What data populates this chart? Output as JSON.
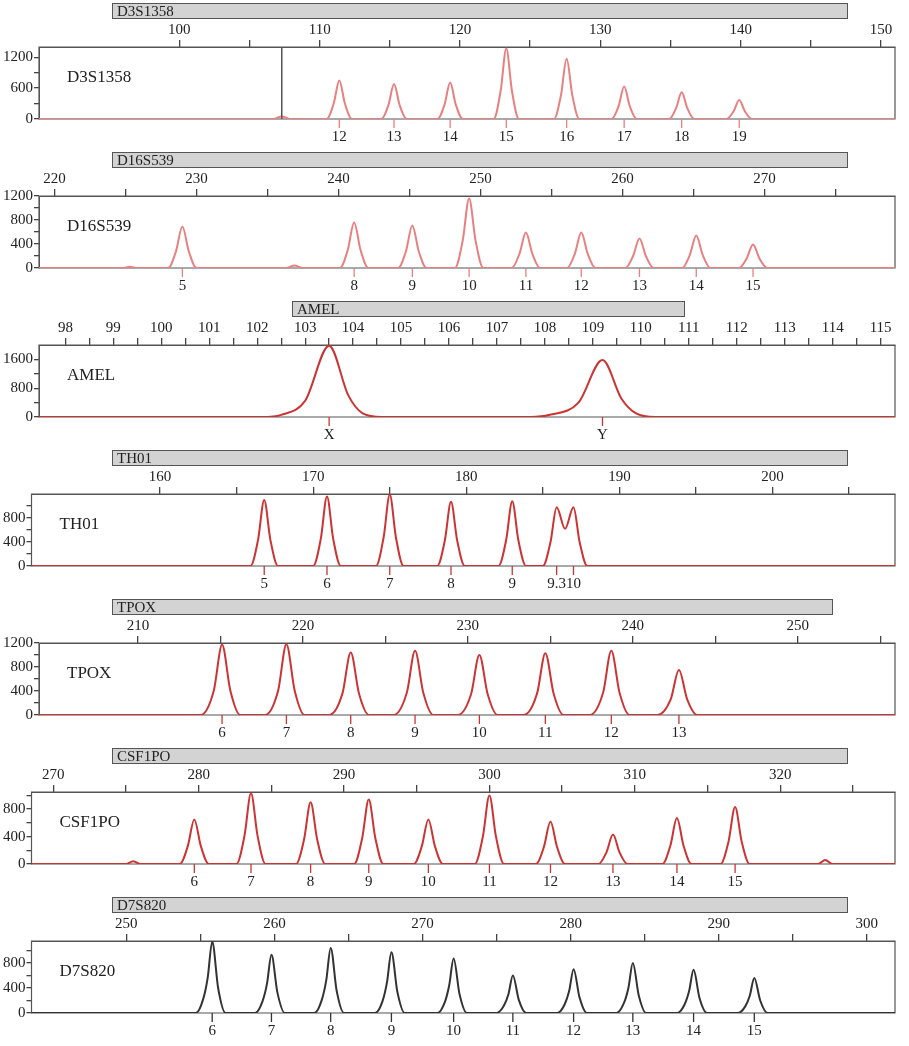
{
  "chart_data": [
    {
      "type": "line",
      "title": "D3S1358",
      "subtitle": "D3S1358",
      "xlim": [
        90,
        151
      ],
      "ylim": [
        0,
        1400
      ],
      "xticks": [
        100,
        {
          "value": 105,
          "label": null
        },
        110,
        {
          "value": 115,
          "label": null
        },
        120,
        {
          "value": 125,
          "label": null
        },
        130,
        {
          "value": 135,
          "label": null
        },
        140,
        {
          "value": 145,
          "label": null
        },
        150
      ],
      "yticks": [
        0,
        {
          "value": 300,
          "label": null
        },
        600,
        {
          "value": 900,
          "label": null
        },
        1200
      ],
      "ref_lines": [
        {
          "axis": "x",
          "value": 107.3,
          "color": "#555555"
        }
      ],
      "series": [
        {
          "color": "#e88080",
          "x": [
            90,
            106.7,
            107.3,
            107.9,
            110.5,
            111.0,
            111.4,
            111.8,
            112.3,
            114.4,
            114.9,
            115.3,
            115.7,
            116.2,
            118.4,
            118.9,
            119.3,
            119.7,
            120.2,
            122.4,
            122.9,
            123.3,
            123.7,
            124.2,
            126.7,
            127.2,
            127.6,
            128.0,
            128.5,
            130.8,
            131.3,
            131.7,
            132.1,
            132.6,
            134.9,
            135.4,
            135.8,
            136.2,
            136.7,
            139.0,
            139.5,
            139.9,
            140.3,
            140.8,
            151
          ],
          "values": [
            0,
            0,
            50,
            0,
            0,
            300,
            750,
            300,
            0,
            0,
            270,
            680,
            270,
            0,
            0,
            280,
            710,
            280,
            0,
            0,
            550,
            1370,
            550,
            0,
            0,
            470,
            1170,
            470,
            0,
            0,
            250,
            630,
            250,
            0,
            0,
            210,
            520,
            210,
            0,
            0,
            150,
            370,
            150,
            0,
            0
          ]
        }
      ],
      "annotations": [
        "12",
        "13",
        "14",
        "15",
        "16",
        "17",
        "18",
        "19"
      ]
    },
    {
      "type": "line",
      "title": "D16S539",
      "subtitle": "D16S539",
      "xlim": [
        218.9,
        279.2
      ],
      "ylim": [
        0,
        1200
      ],
      "xticks": [
        220,
        {
          "value": 225,
          "label": null
        },
        230,
        {
          "value": 235,
          "label": null
        },
        240,
        {
          "value": 245,
          "label": null
        },
        250,
        {
          "value": 255,
          "label": null
        },
        260,
        {
          "value": 265,
          "label": null
        },
        270,
        {
          "value": 275,
          "label": null
        }
      ],
      "yticks": [
        0,
        {
          "value": 200,
          "label": null
        },
        400,
        {
          "value": 600,
          "label": null
        },
        800,
        {
          "value": 1000,
          "label": null
        },
        1200
      ],
      "series": [
        {
          "color": "#e88080",
          "x": [
            218.9,
            224.8,
            225.3,
            225.8,
            228.0,
            228.55,
            229.0,
            229.45,
            230.0,
            236.3,
            236.9,
            237.5,
            240.1,
            240.65,
            241.1,
            241.55,
            242.1,
            244.2,
            244.75,
            245.2,
            245.65,
            246.2,
            248.2,
            248.75,
            249.2,
            249.65,
            250.2,
            252.2,
            252.75,
            253.2,
            253.65,
            254.2,
            256.1,
            256.65,
            257.1,
            257.55,
            258.1,
            260.2,
            260.75,
            261.2,
            261.65,
            262.2,
            264.2,
            264.75,
            265.2,
            265.65,
            266.2,
            268.2,
            268.75,
            269.2,
            269.65,
            270.2,
            279.2
          ],
          "values": [
            0,
            0,
            20,
            0,
            0,
            280,
            690,
            280,
            0,
            0,
            40,
            0,
            0,
            300,
            760,
            300,
            0,
            0,
            280,
            710,
            280,
            0,
            0,
            460,
            1160,
            460,
            0,
            0,
            240,
            590,
            240,
            0,
            0,
            240,
            590,
            240,
            0,
            0,
            200,
            490,
            200,
            0,
            0,
            220,
            540,
            220,
            0,
            0,
            160,
            390,
            160,
            0,
            0
          ]
        }
      ],
      "annotations": [
        "5",
        "8",
        "9",
        "10",
        "11",
        "12",
        "13",
        "14",
        "15"
      ]
    },
    {
      "type": "line",
      "title": "AMEL",
      "subtitle": "AMEL",
      "xlim": [
        97.45,
        115.3
      ],
      "ylim": [
        0,
        2000
      ],
      "xticks": [
        98,
        {
          "value": 98.5,
          "label": null
        },
        99,
        {
          "value": 99.5,
          "label": null
        },
        100,
        {
          "value": 100.5,
          "label": null
        },
        101,
        {
          "value": 101.5,
          "label": null
        },
        102,
        {
          "value": 102.5,
          "label": null
        },
        103,
        {
          "value": 103.5,
          "label": null
        },
        104,
        {
          "value": 104.5,
          "label": null
        },
        105,
        {
          "value": 105.5,
          "label": null
        },
        106,
        {
          "value": 106.5,
          "label": null
        },
        107,
        {
          "value": 107.5,
          "label": null
        },
        108,
        {
          "value": 108.5,
          "label": null
        },
        109,
        {
          "value": 109.5,
          "label": null
        },
        110,
        {
          "value": 110.5,
          "label": null
        },
        111,
        {
          "value": 111.5,
          "label": null
        },
        112,
        {
          "value": 112.5,
          "label": null
        },
        113,
        {
          "value": 113.5,
          "label": null
        },
        114,
        {
          "value": 114.5,
          "label": null
        },
        115
      ],
      "yticks": [
        0,
        {
          "value": 400,
          "label": null
        },
        800,
        {
          "value": 1200,
          "label": null
        },
        1600
      ],
      "series": [
        {
          "color": "#cc3333",
          "x": [
            97.45,
            102.1,
            102.5,
            103.0,
            103.5,
            103.9,
            104.2,
            104.6,
            107.7,
            108.1,
            108.7,
            109.2,
            109.6,
            109.9,
            110.3,
            115.3
          ],
          "values": [
            0,
            0,
            60,
            450,
            1980,
            600,
            100,
            0,
            0,
            60,
            400,
            1580,
            500,
            100,
            0,
            0
          ]
        }
      ],
      "annotations": [
        "X",
        "Y"
      ]
    },
    {
      "type": "line",
      "title": "TH01",
      "subtitle": "TH01",
      "xlim": [
        151.6,
        208
      ],
      "ylim": [
        0,
        1200
      ],
      "xticks": [
        160,
        {
          "value": 165,
          "label": null
        },
        170,
        {
          "value": 175,
          "label": null
        },
        180,
        {
          "value": 185,
          "label": null
        },
        190,
        {
          "value": 195,
          "label": null
        },
        200,
        {
          "value": 205,
          "label": null
        }
      ],
      "yticks": [
        0,
        {
          "value": 200,
          "label": null
        },
        400,
        {
          "value": 600,
          "label": null
        },
        800,
        {
          "value": 1000,
          "label": null
        }
      ],
      "series": [
        {
          "color": "#cc3333",
          "x": [
            151.6,
            165.9,
            166.4,
            166.8,
            167.2,
            167.7,
            170.0,
            170.5,
            170.9,
            171.3,
            171.8,
            174.1,
            174.6,
            175.0,
            175.4,
            175.9,
            178.1,
            178.6,
            179.0,
            179.4,
            179.9,
            182.1,
            182.6,
            183.0,
            183.4,
            183.9,
            185.0,
            185.5,
            185.9,
            186.45,
            187.0,
            187.4,
            187.9,
            208
          ],
          "values": [
            0,
            0,
            440,
            1100,
            440,
            0,
            0,
            460,
            1160,
            460,
            0,
            0,
            480,
            1190,
            480,
            0,
            0,
            430,
            1070,
            430,
            0,
            0,
            430,
            1080,
            430,
            0,
            0,
            400,
            980,
            620,
            980,
            400,
            0,
            0
          ]
        }
      ],
      "annotations": [
        "5",
        "6",
        "7",
        "8",
        "9",
        "9.3",
        "10"
      ]
    },
    {
      "type": "line",
      "title": "TPOX",
      "subtitle": "TPOX",
      "xlim": [
        204.0,
        255.9
      ],
      "ylim": [
        0,
        1200
      ],
      "xticks": [
        210,
        {
          "value": 215,
          "label": null
        },
        220,
        {
          "value": 225,
          "label": null
        },
        230,
        {
          "value": 235,
          "label": null
        },
        240,
        {
          "value": 245,
          "label": null
        },
        250,
        {
          "value": 255,
          "label": null
        }
      ],
      "yticks": [
        0,
        {
          "value": 200,
          "label": null
        },
        400,
        {
          "value": 600,
          "label": null
        },
        800,
        {
          "value": 1000,
          "label": null
        },
        1200
      ],
      "series": [
        {
          "color": "#cc3333",
          "x": [
            204.0,
            213.8,
            214.6,
            215.1,
            215.6,
            216.2,
            217.7,
            218.5,
            219.0,
            219.5,
            220.1,
            221.6,
            222.4,
            222.9,
            223.4,
            224.0,
            225.5,
            226.3,
            226.8,
            227.3,
            227.9,
            229.4,
            230.2,
            230.7,
            231.2,
            231.8,
            233.4,
            234.2,
            234.7,
            235.2,
            235.8,
            237.4,
            238.2,
            238.7,
            239.2,
            239.8,
            241.5,
            242.3,
            242.8,
            243.3,
            243.9,
            255.9
          ],
          "values": [
            0,
            0,
            410,
            1170,
            410,
            0,
            0,
            410,
            1180,
            410,
            0,
            0,
            360,
            1040,
            360,
            0,
            0,
            370,
            1070,
            370,
            0,
            0,
            350,
            1000,
            350,
            0,
            0,
            360,
            1030,
            360,
            0,
            0,
            370,
            1070,
            370,
            0,
            0,
            260,
            750,
            260,
            0,
            0
          ]
        }
      ],
      "annotations": [
        "6",
        "7",
        "8",
        "9",
        "10",
        "11",
        "12",
        "13"
      ]
    },
    {
      "type": "line",
      "title": "CSF1PO",
      "subtitle": "CSF1PO",
      "xlim": [
        268.5,
        327.9
      ],
      "ylim": [
        0,
        1050
      ],
      "xticks": [
        270,
        {
          "value": 275,
          "label": null
        },
        280,
        {
          "value": 285,
          "label": null
        },
        290,
        {
          "value": 295,
          "label": null
        },
        300,
        {
          "value": 305,
          "label": null
        },
        310,
        {
          "value": 315,
          "label": null
        },
        320,
        {
          "value": 325,
          "label": null
        }
      ],
      "yticks": [
        0,
        {
          "value": 200,
          "label": null
        },
        400,
        {
          "value": 600,
          "label": null
        },
        800,
        {
          "value": 1000,
          "label": null
        }
      ],
      "series": [
        {
          "color": "#cc3333",
          "x": [
            268.5,
            275.0,
            275.5,
            276.0,
            278.7,
            279.25,
            279.7,
            280.15,
            280.7,
            282.6,
            283.15,
            283.6,
            284.05,
            284.6,
            286.7,
            287.25,
            287.7,
            288.15,
            288.7,
            290.7,
            291.25,
            291.7,
            292.15,
            292.7,
            294.8,
            295.35,
            295.8,
            296.25,
            296.8,
            299.0,
            299.55,
            300.0,
            300.45,
            301.0,
            303.2,
            303.75,
            304.2,
            304.65,
            305.2,
            307.5,
            308.05,
            308.5,
            308.95,
            309.5,
            311.9,
            312.45,
            312.9,
            313.35,
            313.9,
            315.9,
            316.45,
            316.9,
            317.35,
            317.9,
            322.6,
            323.1,
            323.6,
            327.9
          ],
          "values": [
            0,
            0,
            40,
            0,
            0,
            260,
            650,
            260,
            0,
            0,
            410,
            1030,
            410,
            0,
            0,
            360,
            900,
            360,
            0,
            0,
            380,
            940,
            380,
            0,
            0,
            260,
            650,
            260,
            0,
            0,
            400,
            1000,
            400,
            0,
            0,
            250,
            620,
            250,
            0,
            0,
            170,
            430,
            170,
            0,
            0,
            270,
            670,
            270,
            0,
            0,
            330,
            830,
            330,
            0,
            0,
            60,
            0,
            0
          ]
        }
      ],
      "annotations": [
        "6",
        "7",
        "8",
        "9",
        "10",
        "11",
        "12",
        "13",
        "14",
        "15"
      ]
    },
    {
      "type": "line",
      "title": "D7S820",
      "subtitle": "D7S820",
      "xlim": [
        243.6,
        301.9
      ],
      "ylim": [
        0,
        1150
      ],
      "xticks": [
        250,
        {
          "value": 255,
          "label": null
        },
        260,
        {
          "value": 265,
          "label": null
        },
        270,
        {
          "value": 275,
          "label": null
        },
        280,
        {
          "value": 285,
          "label": null
        },
        290,
        {
          "value": 295,
          "label": null
        },
        300
      ],
      "yticks": [
        0,
        {
          "value": 200,
          "label": null
        },
        400,
        {
          "value": 600,
          "label": null
        },
        800,
        {
          "value": 1000,
          "label": null
        }
      ],
      "series": [
        {
          "color": "#333333",
          "x": [
            243.6,
            254.7,
            255.2,
            255.5,
            255.8,
            256.2,
            256.7,
            258.7,
            259.2,
            259.5,
            259.8,
            260.2,
            260.7,
            262.7,
            263.2,
            263.5,
            263.8,
            264.2,
            264.7,
            266.8,
            267.3,
            267.6,
            267.9,
            268.3,
            268.8,
            271.0,
            271.5,
            271.8,
            272.1,
            272.5,
            273.0,
            275.0,
            275.5,
            275.8,
            276.1,
            276.5,
            277.0,
            279.1,
            279.6,
            279.9,
            280.2,
            280.6,
            281.1,
            283.1,
            283.6,
            283.9,
            284.2,
            284.6,
            285.1,
            287.2,
            287.7,
            288.0,
            288.3,
            288.7,
            289.2,
            291.3,
            291.8,
            292.1,
            292.4,
            292.8,
            293.3,
            301.9
          ],
          "values": [
            0,
            0,
            230,
            570,
            1140,
            400,
            0,
            0,
            190,
            470,
            930,
            330,
            0,
            0,
            210,
            520,
            1040,
            360,
            0,
            0,
            190,
            490,
            970,
            340,
            0,
            0,
            170,
            440,
            870,
            300,
            0,
            0,
            120,
            300,
            600,
            210,
            0,
            0,
            140,
            350,
            700,
            250,
            0,
            0,
            160,
            400,
            800,
            280,
            0,
            0,
            140,
            350,
            690,
            240,
            0,
            0,
            110,
            280,
            560,
            200,
            0,
            0
          ]
        }
      ],
      "annotations": [
        "6",
        "7",
        "8",
        "9",
        "10",
        "11",
        "12",
        "13",
        "14",
        "15"
      ]
    }
  ]
}
